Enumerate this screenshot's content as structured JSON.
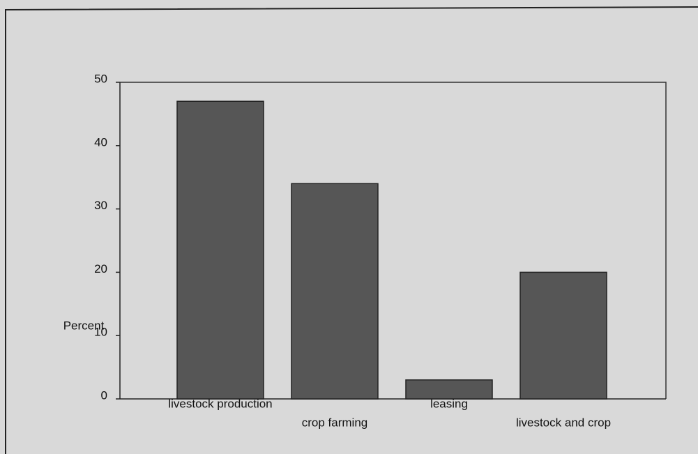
{
  "chart_data": {
    "type": "bar",
    "y_label": "Percent",
    "categories": [
      "livestock production",
      "crop farming",
      "leasing",
      "livestock and crop"
    ],
    "values": [
      47,
      34,
      3,
      20
    ],
    "color": "#565656",
    "ylim": [
      0,
      50
    ],
    "yticks": [
      0,
      10,
      20,
      30,
      40,
      50
    ],
    "grid": false
  }
}
